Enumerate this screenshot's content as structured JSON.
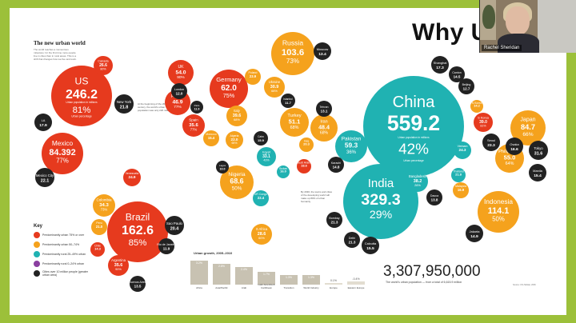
{
  "slide": {
    "title": "Why U",
    "map_title": "The new urban world",
    "intro": "The world reaches a momentous milestone: for the first time more people live in cities than in rural areas. This is a shift that changes how we live and work.",
    "note_left": "At the beginning of the 20th century, the world's urban population was only 220 million",
    "note_mid": "By 2030, the towns and cities of the developing world will make up 80% of urban humanity"
  },
  "countries": [
    {
      "name": "US",
      "value": "246.2",
      "pct": "81%",
      "sub1": "Urban population in millions",
      "sub2": "Urban percentage",
      "color": "#e63a1e",
      "cls": "big"
    },
    {
      "name": "China",
      "value": "559.2",
      "pct": "42%",
      "sub1": "Urban population in millions",
      "sub2": "Urban percentage",
      "color": "#20b2b2",
      "cls": "big"
    },
    {
      "name": "India",
      "value": "329.3",
      "pct": "29%",
      "sub1": "",
      "sub2": "",
      "color": "#20b2b2",
      "cls": "big"
    },
    {
      "name": "Brazil",
      "value": "162.6",
      "pct": "85%",
      "sub1": "",
      "sub2": "",
      "color": "#e63a1e",
      "cls": "big"
    },
    {
      "name": "Mexico",
      "value": "84.392",
      "pct": "77%",
      "sub1": "",
      "sub2": "",
      "color": "#e63a1e",
      "cls": "mid"
    },
    {
      "name": "Russia",
      "value": "103.6",
      "pct": "73%",
      "sub1": "",
      "sub2": "",
      "color": "#f5a21d",
      "cls": "mid"
    },
    {
      "name": "Germany",
      "value": "62.0",
      "pct": "75%",
      "sub1": "",
      "sub2": "",
      "color": "#e63a1e",
      "cls": "mid"
    },
    {
      "name": "Indonesia",
      "value": "114.1",
      "pct": "50%",
      "sub1": "",
      "sub2": "",
      "color": "#f5a21d",
      "cls": "mid"
    },
    {
      "name": "Japan",
      "value": "84.7",
      "pct": "66%",
      "sub1": "",
      "sub2": "",
      "color": "#f5a21d",
      "cls": "mid"
    },
    {
      "name": "Nigeria",
      "value": "68.6",
      "pct": "50%",
      "sub1": "",
      "sub2": "",
      "color": "#f5a21d",
      "cls": "mid"
    },
    {
      "name": "Pakistan",
      "value": "59.3",
      "pct": "36%",
      "sub1": "",
      "sub2": "",
      "color": "#20b2b2",
      "cls": "mid"
    },
    {
      "name": "Iran",
      "value": "48.4",
      "pct": "68%",
      "sub1": "",
      "sub2": "",
      "color": "#f5a21d",
      "cls": "mid"
    },
    {
      "name": "Turkey",
      "value": "51.1",
      "pct": "68%",
      "sub1": "",
      "sub2": "",
      "color": "#f5a21d",
      "cls": "mid"
    },
    {
      "name": "UK",
      "value": "54.0",
      "pct": "90%",
      "sub1": "",
      "sub2": "",
      "color": "#e63a1e",
      "cls": "small"
    },
    {
      "name": "France",
      "value": "46.9",
      "pct": "77%",
      "sub1": "",
      "sub2": "",
      "color": "#e63a1e",
      "cls": "small"
    },
    {
      "name": "Spain",
      "value": "35.6",
      "pct": "77%",
      "sub1": "",
      "sub2": "",
      "color": "#e63a1e",
      "cls": "small"
    },
    {
      "name": "Italy",
      "value": "39.6",
      "pct": "68%",
      "sub1": "",
      "sub2": "",
      "color": "#f5a21d",
      "cls": "small"
    },
    {
      "name": "Ukraine",
      "value": "30.9",
      "pct": "68%",
      "sub1": "",
      "sub2": "",
      "color": "#f5a21d",
      "cls": "small"
    },
    {
      "name": "Philippines",
      "value": "55.0",
      "pct": "64%",
      "sub1": "",
      "sub2": "",
      "color": "#f5a21d",
      "cls": "small"
    },
    {
      "name": "Bangladesh",
      "value": "38.2",
      "pct": "26%",
      "sub1": "",
      "sub2": "",
      "color": "#20b2b2",
      "cls": "small"
    },
    {
      "name": "Vietnam",
      "value": "24.3",
      "pct": "",
      "sub1": "",
      "sub2": "",
      "color": "#20b2b2",
      "cls": "small"
    },
    {
      "name": "Egypt",
      "value": "33.1",
      "pct": "43%",
      "sub1": "",
      "sub2": "",
      "color": "#20b2b2",
      "cls": "small"
    },
    {
      "name": "Colombia",
      "value": "34.3",
      "pct": "73%",
      "sub1": "",
      "sub2": "",
      "color": "#f5a21d",
      "cls": "small"
    },
    {
      "name": "Argentina",
      "value": "35.6",
      "pct": "90%",
      "sub1": "",
      "sub2": "",
      "color": "#e63a1e",
      "cls": "small"
    },
    {
      "name": "S Africa",
      "value": "28.6",
      "pct": "60%",
      "sub1": "",
      "sub2": "",
      "color": "#f5a21d",
      "cls": "small"
    },
    {
      "name": "Algeria",
      "value": "22.0",
      "pct": "65%",
      "sub1": "",
      "sub2": "",
      "color": "#f5a21d",
      "cls": "small"
    },
    {
      "name": "Poland",
      "value": "23.9",
      "pct": "",
      "sub1": "",
      "sub2": "",
      "color": "#f5a21d",
      "cls": "small"
    },
    {
      "name": "S Korea",
      "value": "39.0",
      "pct": "81%",
      "sub1": "",
      "sub2": "",
      "color": "#e63a1e",
      "cls": "small"
    },
    {
      "name": "Canada",
      "value": "26.6",
      "pct": "80%",
      "sub1": "",
      "sub2": "",
      "color": "#e63a1e",
      "cls": "small"
    },
    {
      "name": "Venezuela",
      "value": "24.9",
      "pct": "",
      "sub1": "",
      "sub2": "",
      "color": "#e63a1e",
      "cls": "small"
    },
    {
      "name": "Morocco",
      "value": "15.4",
      "pct": "",
      "sub1": "",
      "sub2": "",
      "color": "#f5a21d",
      "cls": "small"
    },
    {
      "name": "Peru",
      "value": "21.0",
      "pct": "",
      "sub1": "",
      "sub2": "",
      "color": "#f5a21d",
      "cls": "small"
    },
    {
      "name": "Malaysia",
      "value": "16.9",
      "pct": "",
      "sub1": "",
      "sub2": "",
      "color": "#f5a21d",
      "cls": "small"
    },
    {
      "name": "Thailand",
      "value": "21.8",
      "pct": "",
      "sub1": "",
      "sub2": "",
      "color": "#20b2b2",
      "cls": "small"
    },
    {
      "name": "Iraq",
      "value": "20.3",
      "pct": "",
      "sub1": "",
      "sub2": "",
      "color": "#f5a21d",
      "cls": "small"
    },
    {
      "name": "Saudi Arabia",
      "value": "18.6",
      "pct": "",
      "sub1": "",
      "sub2": "",
      "color": "#e63a1e",
      "cls": "small"
    },
    {
      "name": "Sudan",
      "value": "16.0",
      "pct": "",
      "sub1": "",
      "sub2": "",
      "color": "#20b2b2",
      "cls": "small"
    },
    {
      "name": "DR Congo",
      "value": "22.4",
      "pct": "",
      "sub1": "",
      "sub2": "",
      "color": "#20b2b2",
      "cls": "small"
    },
    {
      "name": "N Korea",
      "value": "14.2",
      "pct": "",
      "sub1": "",
      "sub2": "",
      "color": "#f5a21d",
      "cls": "small"
    },
    {
      "name": "Chile",
      "value": "14.3",
      "pct": "",
      "sub1": "",
      "sub2": "",
      "color": "#e63a1e",
      "cls": "small"
    }
  ],
  "cities": [
    {
      "name": "New York",
      "value": "21.8"
    },
    {
      "name": "LA",
      "value": "17.9"
    },
    {
      "name": "Mexico City",
      "value": "22.1"
    },
    {
      "name": "Sao Paulo",
      "value": "20.4"
    },
    {
      "name": "Rio de Janeiro",
      "value": "11.9"
    },
    {
      "name": "Buenos Aires",
      "value": "13.5"
    },
    {
      "name": "London",
      "value": "12.0"
    },
    {
      "name": "Paris",
      "value": "11.9"
    },
    {
      "name": "Moscow",
      "value": "13.4"
    },
    {
      "name": "Istanbul",
      "value": "11.7"
    },
    {
      "name": "Tehran",
      "value": "13.1"
    },
    {
      "name": "Cairo",
      "value": "15.9"
    },
    {
      "name": "Lagos",
      "value": "10.0"
    },
    {
      "name": "Karachi",
      "value": "14.8"
    },
    {
      "name": "Delhi",
      "value": "21.3"
    },
    {
      "name": "Bombay",
      "value": "21.3"
    },
    {
      "name": "Calcutta",
      "value": "15.5"
    },
    {
      "name": "Dacca",
      "value": "13.8"
    },
    {
      "name": "Shanghai",
      "value": "17.3"
    },
    {
      "name": "Beijing",
      "value": "12.7"
    },
    {
      "name": "Canton",
      "value": "14.5"
    },
    {
      "name": "Seoul",
      "value": "23.3"
    },
    {
      "name": "Osaka",
      "value": "16.6"
    },
    {
      "name": "Tokyo",
      "value": "31.6"
    },
    {
      "name": "Manila",
      "value": "15.4"
    },
    {
      "name": "Jakarta",
      "value": "14.9"
    }
  ],
  "legend": {
    "title": "Key",
    "items": [
      {
        "color": "#e63a1e",
        "label": "Predominantly urban 75% or over"
      },
      {
        "color": "#f5a21d",
        "label": "Predominantly urban 50–74%"
      },
      {
        "color": "#20b2b2",
        "label": "Predominantly rural 25–49% urban"
      },
      {
        "color": "#8a3fa0",
        "label": "Predominantly rural 0–24% urban"
      },
      {
        "color": "#222222",
        "label": "Cities over 10 million people (greater urban area)"
      }
    ]
  },
  "growth_chart": {
    "title": "Urban growth, 2005–2010",
    "bars": [
      {
        "label": "Africa",
        "value": "3.2%",
        "pct": 3.2
      },
      {
        "label": "Asia/Pacific",
        "value": "2.8%",
        "pct": 2.8
      },
      {
        "label": "Arab",
        "value": "2.4%",
        "pct": 2.4
      },
      {
        "label": "Latin America & Caribbean",
        "value": "1.7%",
        "pct": 1.7
      },
      {
        "label": "Transition",
        "value": "1.3%",
        "pct": 1.3
      },
      {
        "label": "World Industry",
        "value": "1.3%",
        "pct": 1.3
      },
      {
        "label": "Europe",
        "value": "0.1%",
        "pct": 0.1
      },
      {
        "label": "Eastern Europe",
        "value": "-0.4%",
        "pct": -0.4
      }
    ]
  },
  "total": {
    "value": "3,307,950,000",
    "caption": "The world's urban population — from a total of 6,615.9 million"
  },
  "credit": "Source: UN-Habitat, 2006",
  "webcam": {
    "name": "Rachel Sheridan"
  }
}
